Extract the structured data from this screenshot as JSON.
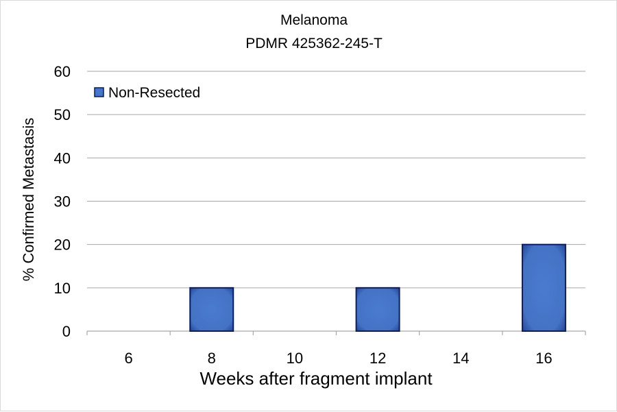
{
  "chart_data": {
    "type": "bar",
    "title": "Melanoma",
    "subtitle": "PDMR 425362-245-T",
    "xlabel": "Weeks after fragment implant",
    "ylabel": "% Confirmed Metastasis",
    "categories": [
      "6",
      "8",
      "10",
      "12",
      "14",
      "16"
    ],
    "series": [
      {
        "name": "Non-Resected",
        "values": [
          0,
          10,
          0,
          10,
          0,
          20
        ]
      }
    ],
    "ylim": [
      0,
      60
    ],
    "yticks": [
      0,
      10,
      20,
      30,
      40,
      50,
      60
    ],
    "grid": true,
    "legend_position": "top-left",
    "colors": {
      "bar_fill": "#4472c4",
      "bar_stroke": "#0b1f5c",
      "grid": "#a6a6a6",
      "axis": "#a6a6a6"
    }
  }
}
